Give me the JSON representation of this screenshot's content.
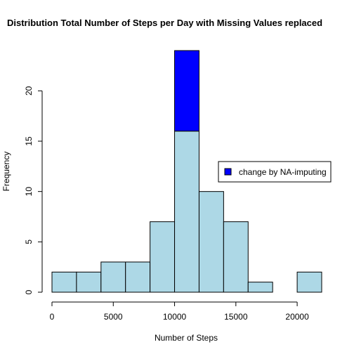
{
  "chart_data": {
    "type": "bar",
    "title": "Distribution Total Number of Steps per Day with Missing Values replaced",
    "xlabel": "Number of Steps",
    "ylabel": "Frequency",
    "xlim": [
      0,
      22000
    ],
    "ylim": [
      0,
      24
    ],
    "x_ticks": [
      0,
      5000,
      10000,
      15000,
      20000
    ],
    "y_ticks": [
      0,
      5,
      10,
      15,
      20
    ],
    "bin_edges": [
      0,
      2000,
      4000,
      6000,
      8000,
      10000,
      12000,
      14000,
      16000,
      18000,
      20000,
      22000
    ],
    "series": [
      {
        "name": "",
        "color": "#add8e6",
        "values": [
          2,
          2,
          3,
          3,
          7,
          16,
          10,
          7,
          1,
          0,
          2
        ]
      },
      {
        "name": "change by NA-imputing",
        "color": "#0000ff",
        "values": [
          0,
          0,
          0,
          0,
          0,
          8,
          0,
          0,
          0,
          0,
          0
        ]
      }
    ],
    "legend": {
      "position": "right",
      "entries": [
        "change by NA-imputing"
      ]
    },
    "grid": false
  }
}
